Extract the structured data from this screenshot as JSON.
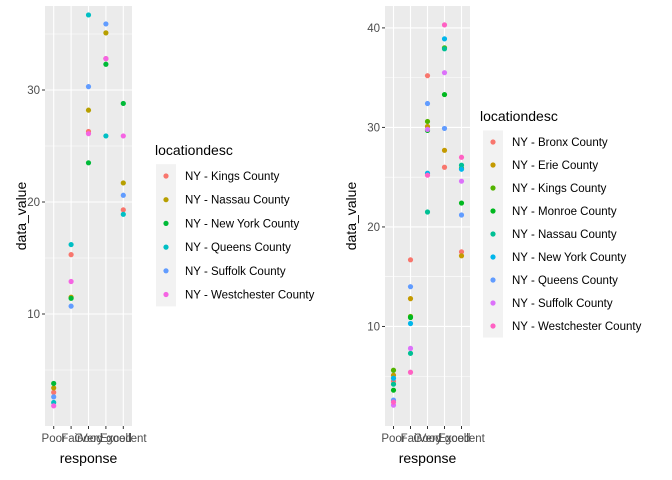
{
  "colors": {
    "panel_bg": "#ebebeb",
    "grid_major": "#ffffff",
    "tick_text": "#4d4d4d"
  },
  "chart_data": [
    {
      "type": "scatter",
      "xlabel": "response",
      "ylabel": "data_value",
      "categories": [
        "Poor",
        "Fair",
        "Good",
        "Very good",
        "Excellent"
      ],
      "ylim": [
        0,
        37.5
      ],
      "yticks": [
        10,
        20,
        30
      ],
      "grid": true,
      "legend": {
        "title": "locationdesc",
        "position": "right"
      },
      "series": [
        {
          "name": "NY - Kings County",
          "color": "#F8766D",
          "values": [
            3.0,
            15.3,
            26.3,
            32.8,
            19.3
          ]
        },
        {
          "name": "NY - Nassau County",
          "color": "#B79F00",
          "values": [
            3.4,
            11.5,
            28.2,
            35.1,
            21.7
          ]
        },
        {
          "name": "NY - New York County",
          "color": "#00BA38",
          "values": [
            3.8,
            11.4,
            23.5,
            32.3,
            28.8
          ]
        },
        {
          "name": "NY - Queens County",
          "color": "#00BFC4",
          "values": [
            2.1,
            16.2,
            36.7,
            25.9,
            18.9
          ]
        },
        {
          "name": "NY - Suffolk County",
          "color": "#619CFF",
          "values": [
            2.6,
            10.7,
            30.3,
            35.9,
            20.6
          ]
        },
        {
          "name": "NY - Westchester County",
          "color": "#F564E3",
          "values": [
            1.8,
            12.9,
            26.1,
            32.8,
            25.9
          ]
        }
      ]
    },
    {
      "type": "scatter",
      "xlabel": "response",
      "ylabel": "data_value",
      "categories": [
        "Poor",
        "Fair",
        "Good",
        "Very good",
        "Excellent"
      ],
      "ylim": [
        0,
        42.2
      ],
      "yticks": [
        10,
        20,
        30,
        40
      ],
      "grid": true,
      "legend": {
        "title": "locationdesc",
        "position": "right"
      },
      "series": [
        {
          "name": "NY - Bronx County",
          "color": "#F8766D",
          "values": [
            4.5,
            16.7,
            35.2,
            26.0,
            17.5
          ]
        },
        {
          "name": "NY - Erie County",
          "color": "#C49A00",
          "values": [
            5.1,
            12.8,
            30.1,
            27.7,
            17.1
          ]
        },
        {
          "name": "NY - Kings County",
          "color": "#53B400",
          "values": [
            5.6,
            11.0,
            30.6,
            38.0,
            25.9
          ]
        },
        {
          "name": "NY - Monroe County",
          "color": "#00B81F",
          "values": [
            3.6,
            10.9,
            29.7,
            33.3,
            22.4
          ]
        },
        {
          "name": "NY - Nassau County",
          "color": "#00C094",
          "values": [
            4.2,
            7.3,
            21.5,
            37.9,
            26.2
          ]
        },
        {
          "name": "NY - New York County",
          "color": "#00B6EB",
          "values": [
            4.8,
            10.3,
            25.4,
            38.9,
            25.8
          ]
        },
        {
          "name": "NY - Queens County",
          "color": "#619CFF",
          "values": [
            2.6,
            14.0,
            32.4,
            29.9,
            21.2
          ]
        },
        {
          "name": "NY - Suffolk County",
          "color": "#DC71FA",
          "values": [
            2.1,
            7.8,
            29.8,
            35.5,
            24.6
          ]
        },
        {
          "name": "NY - Westchester County",
          "color": "#FF61C3",
          "values": [
            2.4,
            5.4,
            25.2,
            40.3,
            27.0
          ]
        }
      ]
    }
  ]
}
